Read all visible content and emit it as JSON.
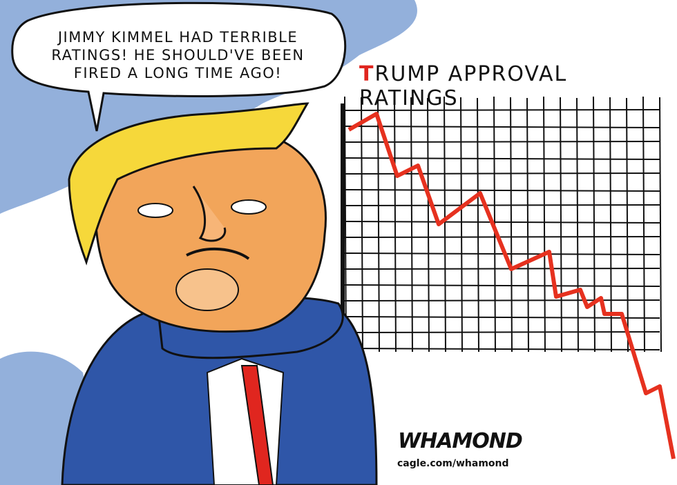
{
  "speech_bubble": {
    "lines": [
      "JIMMY KIMMEL HAD TERRIBLE",
      "RATINGS! HE SHOULD'VE BEEN",
      "FIRED A LONG TIME AGO!"
    ]
  },
  "chart_title": "TRUMP APPROVAL RATINGS",
  "signature": "WHAMOND",
  "credit": "cagle.com/whamond"
}
